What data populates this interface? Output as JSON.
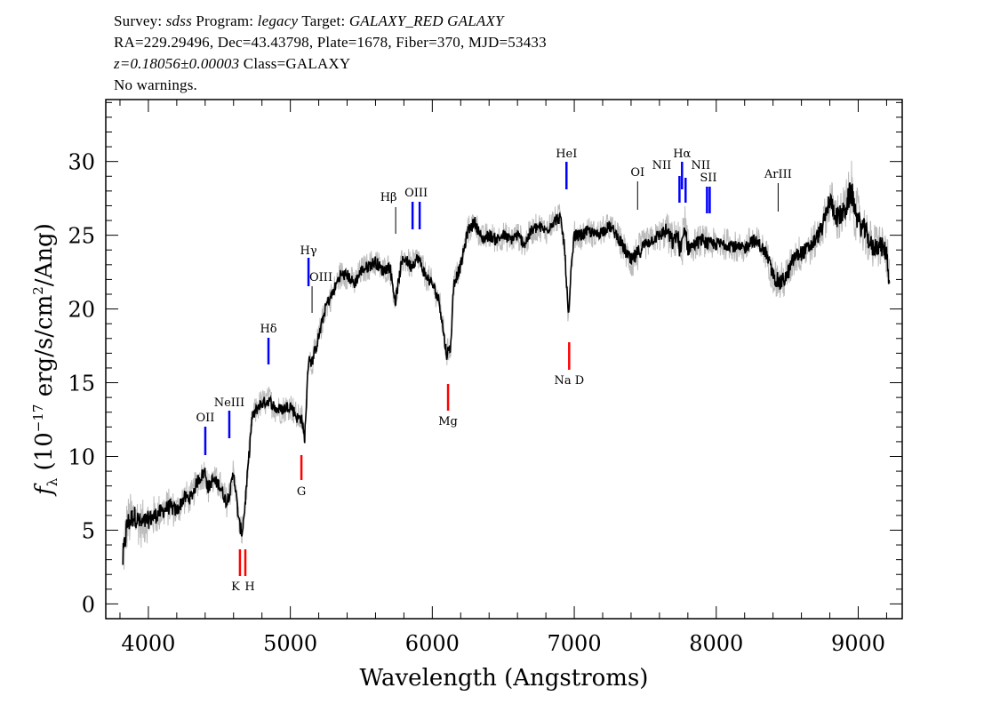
{
  "header": {
    "line1_parts": [
      "Survey: ",
      "sdss",
      " Program: ",
      "legacy",
      " Target: ",
      "GALAXY_RED GALAXY"
    ],
    "line2": "RA=229.29496, Dec=43.43798, Plate=1678, Fiber=370, MJD=53433",
    "line3_z": "z=0.18056±0.00003",
    "line3_class": " Class=GALAXY",
    "line4": "No warnings."
  },
  "chart_data": {
    "type": "line",
    "xlabel": "Wavelength (Angstroms)",
    "ylabel": "f_λ (10^-17 erg/s/cm^2/Ang)",
    "xlim": [
      3700,
      9310
    ],
    "ylim": [
      -1,
      34.2
    ],
    "xticks": [
      "4000",
      "5000",
      "6000",
      "7000",
      "8000",
      "9000"
    ],
    "yticks": [
      "0",
      "5",
      "10",
      "15",
      "20",
      "25",
      "30"
    ],
    "grid": false,
    "colors": {
      "flux": "#000000",
      "error_band": "#bbbbbb",
      "emission": "#0000ff",
      "absorption": "#ff0000",
      "sky": "#000000"
    },
    "series": {
      "x": [
        3820,
        3850,
        3900,
        3950,
        4000,
        4050,
        4100,
        4150,
        4200,
        4250,
        4300,
        4350,
        4400,
        4420,
        4450,
        4500,
        4550,
        4580,
        4600,
        4640,
        4660,
        4680,
        4700,
        4730,
        4780,
        4850,
        4900,
        4950,
        5000,
        5050,
        5080,
        5100,
        5130,
        5150,
        5200,
        5250,
        5300,
        5350,
        5400,
        5450,
        5500,
        5550,
        5600,
        5650,
        5700,
        5740,
        5780,
        5800,
        5850,
        5900,
        5950,
        6000,
        6050,
        6100,
        6130,
        6150,
        6200,
        6250,
        6300,
        6350,
        6400,
        6450,
        6500,
        6550,
        6600,
        6650,
        6700,
        6750,
        6800,
        6850,
        6900,
        6930,
        6960,
        6980,
        7000,
        7050,
        7100,
        7150,
        7200,
        7250,
        7300,
        7350,
        7400,
        7450,
        7500,
        7550,
        7600,
        7650,
        7700,
        7720,
        7750,
        7780,
        7800,
        7850,
        7900,
        7950,
        8000,
        8050,
        8100,
        8150,
        8200,
        8250,
        8300,
        8350,
        8400,
        8450,
        8500,
        8550,
        8600,
        8650,
        8700,
        8750,
        8800,
        8850,
        8900,
        8950,
        9000,
        9050,
        9100,
        9150,
        9200,
        9220
      ],
      "flux": [
        3.0,
        5.4,
        6.0,
        5.4,
        5.7,
        6.0,
        6.3,
        6.6,
        6.3,
        7.2,
        7.2,
        8.4,
        9.0,
        7.8,
        8.4,
        8.1,
        6.9,
        7.8,
        9.0,
        5.4,
        4.8,
        6.6,
        9.0,
        12.6,
        13.5,
        13.8,
        13.2,
        13.2,
        13.5,
        12.6,
        12.6,
        11.1,
        16.9,
        16.3,
        18.1,
        20.2,
        21.1,
        22.3,
        22.3,
        21.7,
        22.6,
        22.9,
        23.2,
        22.6,
        22.9,
        20.5,
        22.9,
        23.5,
        22.9,
        23.5,
        22.3,
        21.7,
        20.5,
        16.9,
        17.5,
        21.7,
        22.9,
        25.3,
        25.9,
        24.7,
        25.0,
        24.7,
        25.0,
        24.7,
        25.0,
        24.4,
        25.3,
        25.6,
        25.3,
        25.9,
        26.2,
        24.4,
        19.3,
        22.9,
        25.0,
        25.0,
        25.3,
        25.0,
        25.3,
        25.6,
        25.0,
        24.1,
        23.2,
        23.8,
        24.4,
        24.7,
        25.0,
        25.3,
        24.4,
        25.2,
        23.8,
        25.6,
        24.1,
        24.4,
        24.7,
        24.4,
        24.4,
        24.4,
        24.4,
        24.1,
        24.1,
        24.7,
        24.4,
        23.8,
        22.3,
        21.7,
        22.3,
        23.5,
        23.8,
        24.1,
        24.7,
        25.6,
        27.4,
        26.2,
        26.5,
        28.0,
        25.9,
        25.3,
        24.1,
        24.4,
        23.8,
        21.7
      ],
      "error": [
        2.0,
        1.8,
        1.6,
        1.5,
        1.4,
        1.3,
        1.2,
        1.2,
        1.1,
        1.1,
        1.0,
        1.0,
        1.0,
        1.0,
        1.0,
        1.0,
        1.0,
        1.0,
        1.0,
        1.0,
        1.0,
        1.0,
        1.0,
        0.9,
        0.9,
        0.9,
        0.9,
        0.9,
        0.9,
        0.9,
        0.9,
        0.9,
        0.9,
        0.9,
        0.9,
        0.9,
        0.9,
        0.9,
        0.9,
        0.9,
        0.9,
        0.9,
        1.0,
        0.9,
        0.9,
        0.9,
        0.9,
        0.9,
        0.9,
        0.9,
        0.9,
        0.9,
        0.9,
        0.9,
        0.9,
        0.9,
        0.9,
        0.9,
        0.9,
        0.9,
        0.9,
        0.9,
        0.9,
        0.9,
        0.9,
        0.9,
        0.9,
        0.9,
        0.9,
        0.9,
        0.9,
        0.9,
        0.9,
        0.9,
        0.9,
        0.9,
        0.9,
        0.9,
        0.9,
        0.9,
        0.9,
        1.0,
        1.2,
        1.2,
        1.0,
        0.9,
        1.0,
        1.2,
        1.3,
        1.5,
        1.5,
        1.5,
        1.2,
        1.0,
        1.0,
        1.0,
        1.0,
        1.0,
        1.0,
        1.0,
        1.0,
        1.0,
        1.0,
        1.0,
        1.2,
        1.3,
        1.2,
        1.2,
        1.2,
        1.2,
        1.2,
        1.3,
        1.5,
        1.6,
        1.8,
        2.0,
        1.8,
        1.6,
        1.5,
        1.5,
        1.5,
        1.6
      ]
    },
    "annotations": [
      {
        "label": "OII",
        "wavelength": 4401,
        "type": "emission"
      },
      {
        "label": "NeIII",
        "wavelength": 4570,
        "type": "emission"
      },
      {
        "label": "Hδ",
        "wavelength": 4846,
        "type": "emission"
      },
      {
        "label": "Hγ",
        "wavelength": 5128,
        "type": "emission"
      },
      {
        "label": "OIII",
        "wavelength": 5153,
        "type": "sky"
      },
      {
        "label": "Hβ",
        "wavelength": 5742,
        "type": "sky"
      },
      {
        "label": "OIII",
        "wavelength": 5861,
        "wavelength2": 5911,
        "type": "emission"
      },
      {
        "label": "HeI",
        "wavelength": 6945,
        "type": "emission"
      },
      {
        "label": "OI",
        "wavelength": 7446,
        "type": "sky"
      },
      {
        "label": "NII",
        "wavelength": 7741,
        "type": "emission"
      },
      {
        "label": "Hα",
        "wavelength": 7759,
        "type": "emission"
      },
      {
        "label": "NII",
        "wavelength": 7784,
        "type": "emission"
      },
      {
        "label": "SII",
        "wavelength": 7935,
        "wavelength2": 7954,
        "type": "emission"
      },
      {
        "label": "ArIII",
        "wavelength": 8436,
        "type": "sky"
      },
      {
        "label": "K",
        "wavelength": 4645,
        "type": "absorption"
      },
      {
        "label": "H",
        "wavelength": 4683,
        "type": "absorption"
      },
      {
        "label": "G",
        "wavelength": 5078,
        "type": "absorption"
      },
      {
        "label": "Mg",
        "wavelength": 6111,
        "type": "absorption"
      },
      {
        "label": "Na D",
        "wavelength": 6964,
        "type": "absorption"
      }
    ]
  }
}
